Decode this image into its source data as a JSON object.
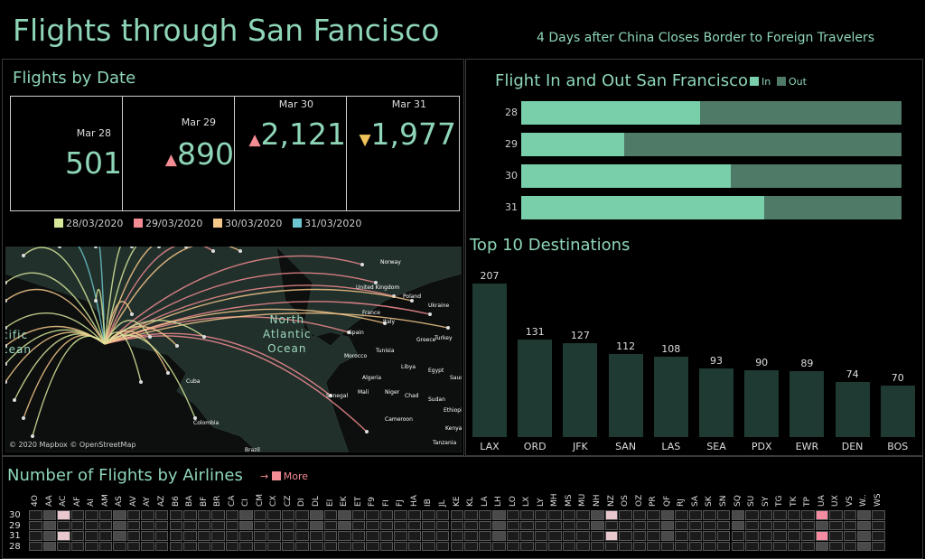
{
  "header": {
    "title": "Flights through San Fancisco",
    "subtitle": "4 Days after China Closes Border to Foreign Travelers"
  },
  "flights_by_date": {
    "title": "Flights by Date",
    "kpis": [
      {
        "label": "Mar 28",
        "value": "501",
        "trend": ""
      },
      {
        "label": "Mar 29",
        "value": "890",
        "trend": "up"
      },
      {
        "label": "Mar 30",
        "value": "2,121",
        "trend": "up"
      },
      {
        "label": "Mar 31",
        "value": "1,977",
        "trend": "down"
      }
    ],
    "legend": [
      {
        "label": "28/03/2020",
        "color": "#d7e89b"
      },
      {
        "label": "29/03/2020",
        "color": "#f38c93"
      },
      {
        "label": "30/03/2020",
        "color": "#f5c78b"
      },
      {
        "label": "31/03/2020",
        "color": "#6cc4cf"
      }
    ]
  },
  "map": {
    "attribution": "© 2020 Mapbox © OpenStreetMap",
    "ocean_north_atlantic": "North\nAtlantic\nOcean",
    "ocean_pacific_partial": "cific\ncean",
    "north_partial": "North",
    "labels": [
      "Norway",
      "United Kingdom",
      "Poland",
      "Ukraine",
      "France",
      "Spain",
      "Italy",
      "Greece",
      "Turkey",
      "Morocco",
      "Tunisia",
      "Libya",
      "Egypt",
      "Saudi",
      "Algeria",
      "Mali",
      "Niger",
      "Chad",
      "Sudan",
      "Senegal",
      "Ethiopia",
      "Cameroon",
      "Kenya",
      "Tanzania",
      "Cuba",
      "Colombia",
      "Brazil"
    ]
  },
  "in_out": {
    "title": "Flight In and Out San Francisco",
    "legend": [
      {
        "label": "In",
        "color": "#79cfaa"
      },
      {
        "label": "Out",
        "color": "#4f7a67"
      }
    ]
  },
  "top10": {
    "title": "Top 10 Destinations"
  },
  "airlines": {
    "title": "Number of Flights by Airlines",
    "more_label": "More",
    "more_arrow": "→",
    "rows": [
      "30",
      "29",
      "31",
      "28"
    ],
    "codes": [
      "4O",
      "AA",
      "AC",
      "AF",
      "AI",
      "AM",
      "AS",
      "AV",
      "AY",
      "AZ",
      "B6",
      "BA",
      "BF",
      "BR",
      "CA",
      "CI",
      "CM",
      "CX",
      "CZ",
      "DI",
      "DL",
      "EI",
      "EK",
      "ET",
      "F9",
      "FI",
      "FJ",
      "HA",
      "IB",
      "JL",
      "KE",
      "KL",
      "LA",
      "LH",
      "LO",
      "LX",
      "LY",
      "MH",
      "MS",
      "MU",
      "NH",
      "NZ",
      "OS",
      "OZ",
      "PR",
      "QF",
      "RJ",
      "SA",
      "SK",
      "SN",
      "SQ",
      "SU",
      "SY",
      "TG",
      "TK",
      "TP",
      "UA",
      "UX",
      "VS",
      "W..",
      "WS"
    ],
    "highlights": {
      "light": [
        [
          0,
          2
        ],
        [
          2,
          2
        ],
        [
          0,
          41
        ],
        [
          2,
          41
        ]
      ],
      "pink": [
        [
          0,
          56
        ],
        [
          2,
          56
        ]
      ],
      "grey": [
        [
          0,
          1
        ],
        [
          1,
          1
        ],
        [
          2,
          1
        ],
        [
          3,
          1
        ],
        [
          0,
          6
        ],
        [
          1,
          6
        ],
        [
          2,
          6
        ],
        [
          0,
          15
        ],
        [
          1,
          15
        ],
        [
          0,
          20
        ],
        [
          1,
          20
        ],
        [
          0,
          22
        ],
        [
          1,
          22
        ],
        [
          0,
          33
        ],
        [
          1,
          33
        ],
        [
          2,
          33
        ],
        [
          0,
          40
        ],
        [
          1,
          40
        ],
        [
          0,
          45
        ],
        [
          1,
          45
        ],
        [
          2,
          45
        ],
        [
          0,
          50
        ],
        [
          1,
          50
        ],
        [
          0,
          59
        ],
        [
          1,
          59
        ],
        [
          2,
          59
        ],
        [
          3,
          59
        ],
        [
          1,
          56
        ],
        [
          3,
          56
        ]
      ]
    }
  },
  "chart_data": [
    {
      "type": "bar",
      "title": "Flight In and Out San Francisco",
      "orientation": "horizontal",
      "stacked": "percent",
      "categories": [
        "28",
        "29",
        "30",
        "31"
      ],
      "series": [
        {
          "name": "In",
          "values": [
            47,
            27,
            55,
            64
          ]
        },
        {
          "name": "Out",
          "values": [
            53,
            73,
            45,
            36
          ]
        }
      ],
      "legend_position": "top-right"
    },
    {
      "type": "bar",
      "title": "Top 10 Destinations",
      "categories": [
        "LAX",
        "ORD",
        "JFK",
        "SAN",
        "LAS",
        "SEA",
        "PDX",
        "EWR",
        "DEN",
        "BOS"
      ],
      "values": [
        207,
        131,
        127,
        112,
        108,
        93,
        90,
        89,
        74,
        70
      ]
    }
  ]
}
